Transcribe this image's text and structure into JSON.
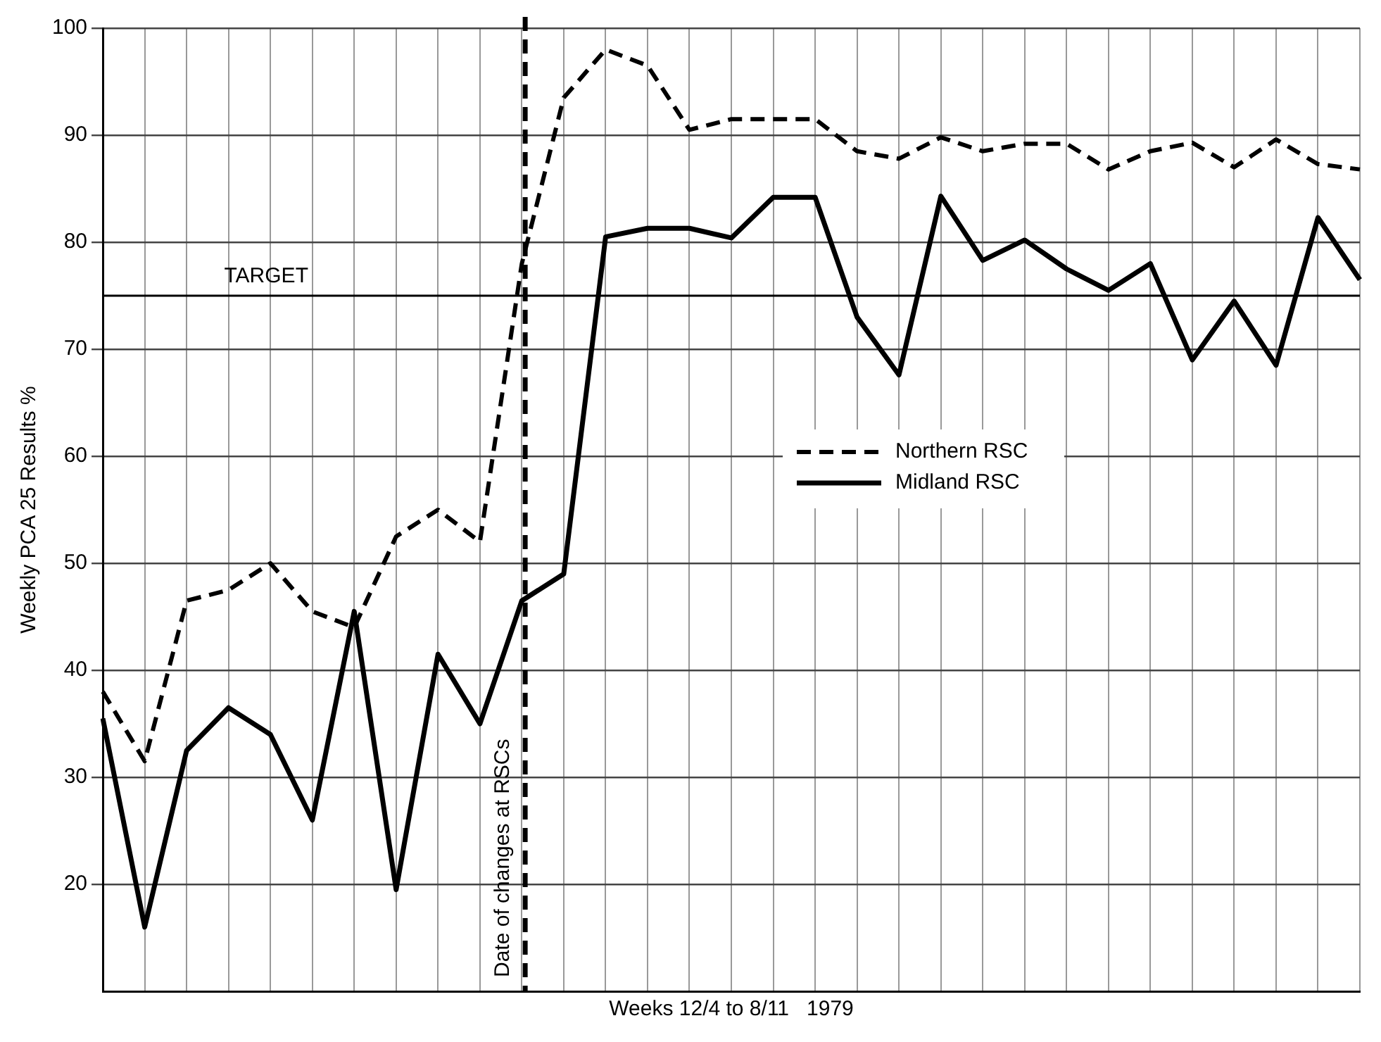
{
  "chart_data": {
    "type": "line",
    "xlabel": "Weeks 12/4 to 8/11   1979",
    "ylabel": "Weekly PCA 25 Results %",
    "categories": [
      null,
      null,
      null,
      null,
      null,
      null,
      null,
      null,
      null,
      null,
      null,
      null,
      null,
      null,
      null,
      null,
      null,
      null,
      null,
      null,
      null,
      null,
      null,
      null,
      null,
      null,
      null,
      null,
      null,
      null,
      null
    ],
    "ylim": [
      10,
      100
    ],
    "yticks": [
      20,
      30,
      40,
      50,
      60,
      70,
      80,
      90,
      100
    ],
    "tick_labels": "y",
    "grid": true,
    "legend": "right",
    "marker": "none",
    "series": [
      {
        "name": "Northern RSC",
        "color": "#000000",
        "line_style": "dashed",
        "values": [
          38,
          31.5,
          46.5,
          47.5,
          50,
          45.5,
          44,
          52.5,
          55,
          52,
          78,
          93.5,
          98,
          96.5,
          90.5,
          91.5,
          91.5,
          91.5,
          88.5,
          87.8,
          89.8,
          88.5,
          89.2,
          89.2,
          86.8,
          88.5,
          89.3,
          87,
          89.6,
          87.3,
          86.8
        ]
      },
      {
        "name": "Midland RSC",
        "color": "#000000",
        "line_style": "solid",
        "values": [
          35.5,
          16,
          32.5,
          36.5,
          34,
          26,
          45.5,
          19.5,
          41.5,
          35,
          46.5,
          49,
          80.5,
          81.3,
          81.3,
          80.4,
          84.2,
          84.2,
          73,
          67.6,
          84.3,
          78.3,
          80.2,
          77.5,
          75.5,
          78,
          69,
          74.5,
          68.5,
          82.3,
          76.5
        ]
      }
    ],
    "ref_lines": [
      {
        "axis": "y",
        "value": 75,
        "label": "TARGET",
        "color": "#000000",
        "line_style": "solid"
      }
    ],
    "annotations": [
      "Date of changes at RSCs"
    ]
  }
}
